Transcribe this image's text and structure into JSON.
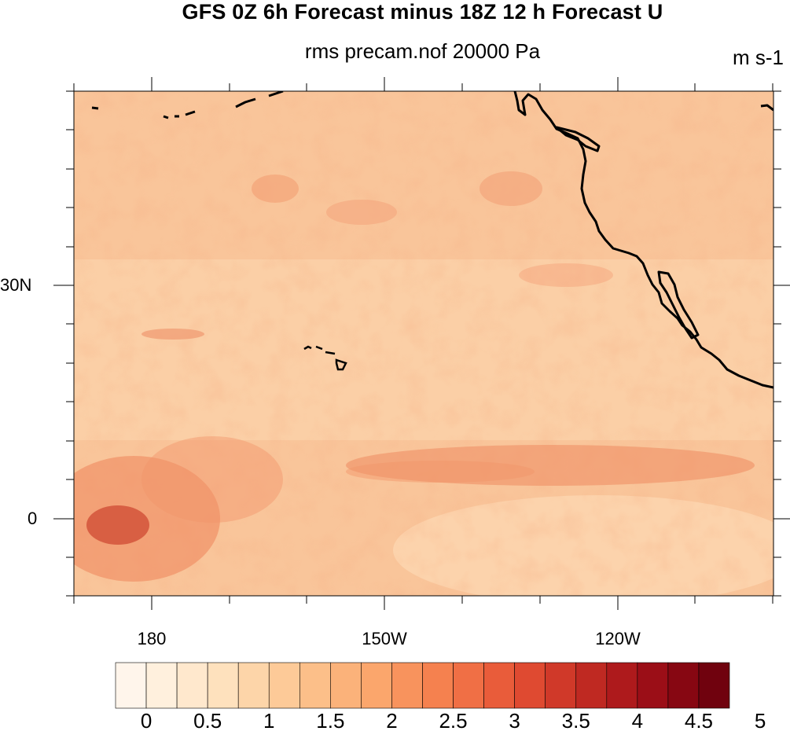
{
  "title": "GFS 0Z 6h Forecast minus 18Z 12 h Forecast U",
  "subtitle": "rms precam.nof 20000 Pa",
  "units": "m s-1",
  "map": {
    "lat_labels": [
      "30N",
      "0"
    ],
    "lon_labels": [
      "180",
      "150W",
      "120W"
    ],
    "colors": {
      "background": "#f9c59a",
      "coastline": "#000000"
    }
  },
  "colorbar": {
    "labels": [
      "0",
      "0.5",
      "1",
      "1.5",
      "2",
      "2.5",
      "3",
      "3.5",
      "4",
      "4.5",
      "5"
    ],
    "colors": [
      "#fff5eb",
      "#fff0dd",
      "#ffe8cd",
      "#fee1bd",
      "#fdd5a9",
      "#fdca98",
      "#fcbf89",
      "#fbb27a",
      "#fba66c",
      "#f8935d",
      "#f5814f",
      "#f06f45",
      "#e95c3a",
      "#df4a31",
      "#d03929",
      "#bf2922",
      "#ae1a1c",
      "#9b0e17",
      "#870712",
      "#70020e"
    ]
  }
}
